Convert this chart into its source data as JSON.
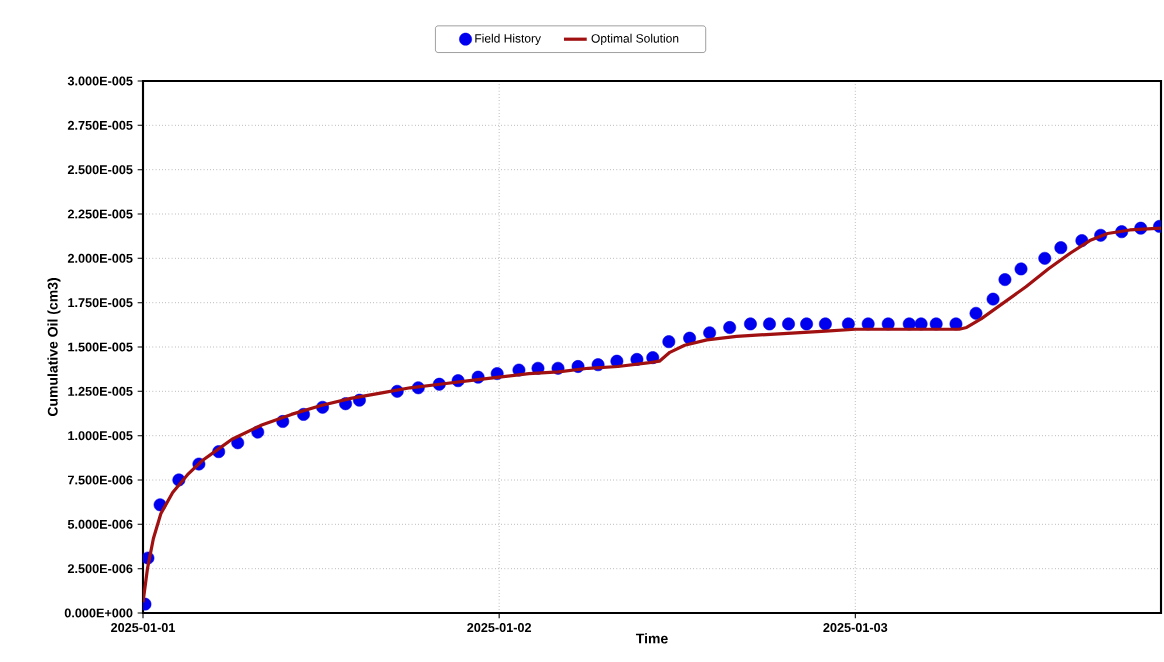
{
  "chart_data": {
    "type": "line",
    "xlabel": "Time",
    "ylabel": "Cumulative Oil (cm3)",
    "xlim": [
      "2025-01-01T00:00",
      "2025-01-03T20:36"
    ],
    "ylim": [
      0,
      3e-05
    ],
    "xticks": [
      "2025-01-01",
      "2025-01-02",
      "2025-01-03"
    ],
    "yticks": [
      {
        "value": 0,
        "label": "0.000E+000"
      },
      {
        "value": 2.5e-06,
        "label": "2.500E-006"
      },
      {
        "value": 5e-06,
        "label": "5.000E-006"
      },
      {
        "value": 7.5e-06,
        "label": "7.500E-006"
      },
      {
        "value": 1e-05,
        "label": "1.000E-005"
      },
      {
        "value": 1.25e-05,
        "label": "1.250E-005"
      },
      {
        "value": 1.5e-05,
        "label": "1.500E-005"
      },
      {
        "value": 1.75e-05,
        "label": "1.750E-005"
      },
      {
        "value": 2e-05,
        "label": "2.000E-005"
      },
      {
        "value": 2.25e-05,
        "label": "2.250E-005"
      },
      {
        "value": 2.5e-05,
        "label": "2.500E-005"
      },
      {
        "value": 2.75e-05,
        "label": "2.750E-005"
      },
      {
        "value": 3e-05,
        "label": "3.000E-005"
      }
    ],
    "grid": true,
    "legend": "top",
    "series": [
      {
        "name": "Field History",
        "type": "scatter",
        "marker": "circle",
        "color": "#0000ee",
        "x": [
          "2025-01-01T00:08",
          "2025-01-01T00:20",
          "2025-01-01T01:09",
          "2025-01-01T02:25",
          "2025-01-01T03:46",
          "2025-01-01T05:06",
          "2025-01-01T06:23",
          "2025-01-01T07:44",
          "2025-01-01T09:25",
          "2025-01-01T10:49",
          "2025-01-01T12:06",
          "2025-01-01T13:39",
          "2025-01-01T14:35",
          "2025-01-01T17:08",
          "2025-01-01T18:33",
          "2025-01-01T19:58",
          "2025-01-01T21:14",
          "2025-01-01T22:35",
          "2025-01-01T23:52",
          "2025-01-02T01:20",
          "2025-01-02T02:37",
          "2025-01-02T03:58",
          "2025-01-02T05:19",
          "2025-01-02T06:40",
          "2025-01-02T07:56",
          "2025-01-02T09:17",
          "2025-01-02T10:21",
          "2025-01-02T11:26",
          "2025-01-02T12:50",
          "2025-01-02T14:11",
          "2025-01-02T15:32",
          "2025-01-02T16:56",
          "2025-01-02T18:13",
          "2025-01-02T19:30",
          "2025-01-02T20:43",
          "2025-01-02T21:59",
          "2025-01-02T23:32",
          "2025-01-03T00:52",
          "2025-01-03T02:13",
          "2025-01-03T03:38",
          "2025-01-03T04:26",
          "2025-01-03T05:27",
          "2025-01-03T06:47",
          "2025-01-03T08:08",
          "2025-01-03T09:17",
          "2025-01-03T10:05",
          "2025-01-03T11:10",
          "2025-01-03T12:46",
          "2025-01-03T13:51",
          "2025-01-03T15:16",
          "2025-01-03T16:32",
          "2025-01-03T17:57",
          "2025-01-03T19:14",
          "2025-01-03T20:30"
        ],
        "values": [
          5e-07,
          3.1e-06,
          6.1e-06,
          7.5e-06,
          8.4e-06,
          9.1e-06,
          9.6e-06,
          1.02e-05,
          1.08e-05,
          1.12e-05,
          1.16e-05,
          1.18e-05,
          1.2e-05,
          1.25e-05,
          1.27e-05,
          1.29e-05,
          1.31e-05,
          1.33e-05,
          1.35e-05,
          1.37e-05,
          1.38e-05,
          1.38e-05,
          1.39e-05,
          1.4e-05,
          1.42e-05,
          1.43e-05,
          1.44e-05,
          1.53e-05,
          1.55e-05,
          1.58e-05,
          1.61e-05,
          1.63e-05,
          1.63e-05,
          1.63e-05,
          1.63e-05,
          1.63e-05,
          1.63e-05,
          1.63e-05,
          1.63e-05,
          1.63e-05,
          1.63e-05,
          1.63e-05,
          1.63e-05,
          1.69e-05,
          1.77e-05,
          1.88e-05,
          1.94e-05,
          2e-05,
          2.06e-05,
          2.1e-05,
          2.13e-05,
          2.15e-05,
          2.17e-05,
          2.18e-05
        ]
      },
      {
        "name": "Optimal Solution",
        "line_style": "solid",
        "color": "#a01010",
        "x": [
          "2025-01-01T00:00",
          "2025-01-01T00:18",
          "2025-01-01T00:42",
          "2025-01-01T01:12",
          "2025-01-01T02:00",
          "2025-01-01T03:00",
          "2025-01-01T04:00",
          "2025-01-01T05:00",
          "2025-01-01T06:00",
          "2025-01-01T08:00",
          "2025-01-01T10:00",
          "2025-01-01T12:00",
          "2025-01-01T14:00",
          "2025-01-01T16:00",
          "2025-01-01T18:00",
          "2025-01-01T20:00",
          "2025-01-01T22:00",
          "2025-01-02T00:00",
          "2025-01-02T02:00",
          "2025-01-02T04:00",
          "2025-01-02T06:00",
          "2025-01-02T08:00",
          "2025-01-02T10:00",
          "2025-01-02T10:48",
          "2025-01-02T11:30",
          "2025-01-02T12:30",
          "2025-01-02T14:00",
          "2025-01-02T16:00",
          "2025-01-02T18:00",
          "2025-01-02T20:00",
          "2025-01-02T22:00",
          "2025-01-03T00:00",
          "2025-01-03T02:00",
          "2025-01-03T04:00",
          "2025-01-03T07:00",
          "2025-01-03T07:30",
          "2025-01-03T08:30",
          "2025-01-03T10:00",
          "2025-01-03T11:30",
          "2025-01-03T13:00",
          "2025-01-03T14:30",
          "2025-01-03T15:48",
          "2025-01-03T17:00",
          "2025-01-03T18:30",
          "2025-01-03T20:36"
        ],
        "values": [
          6e-07,
          2.5e-06,
          4.2e-06,
          5.6e-06,
          6.8e-06,
          7.8e-06,
          8.6e-06,
          9.2e-06,
          9.8e-06,
          1.06e-05,
          1.12e-05,
          1.17e-05,
          1.21e-05,
          1.24e-05,
          1.27e-05,
          1.29e-05,
          1.31e-05,
          1.33e-05,
          1.35e-05,
          1.36e-05,
          1.38e-05,
          1.39e-05,
          1.41e-05,
          1.42e-05,
          1.47e-05,
          1.51e-05,
          1.54e-05,
          1.56e-05,
          1.57e-05,
          1.58e-05,
          1.59e-05,
          1.6e-05,
          1.6e-05,
          1.6e-05,
          1.6e-05,
          1.61e-05,
          1.66e-05,
          1.75e-05,
          1.84e-05,
          1.94e-05,
          2.03e-05,
          2.1e-05,
          2.14e-05,
          2.16e-05,
          2.17e-05
        ]
      }
    ]
  }
}
